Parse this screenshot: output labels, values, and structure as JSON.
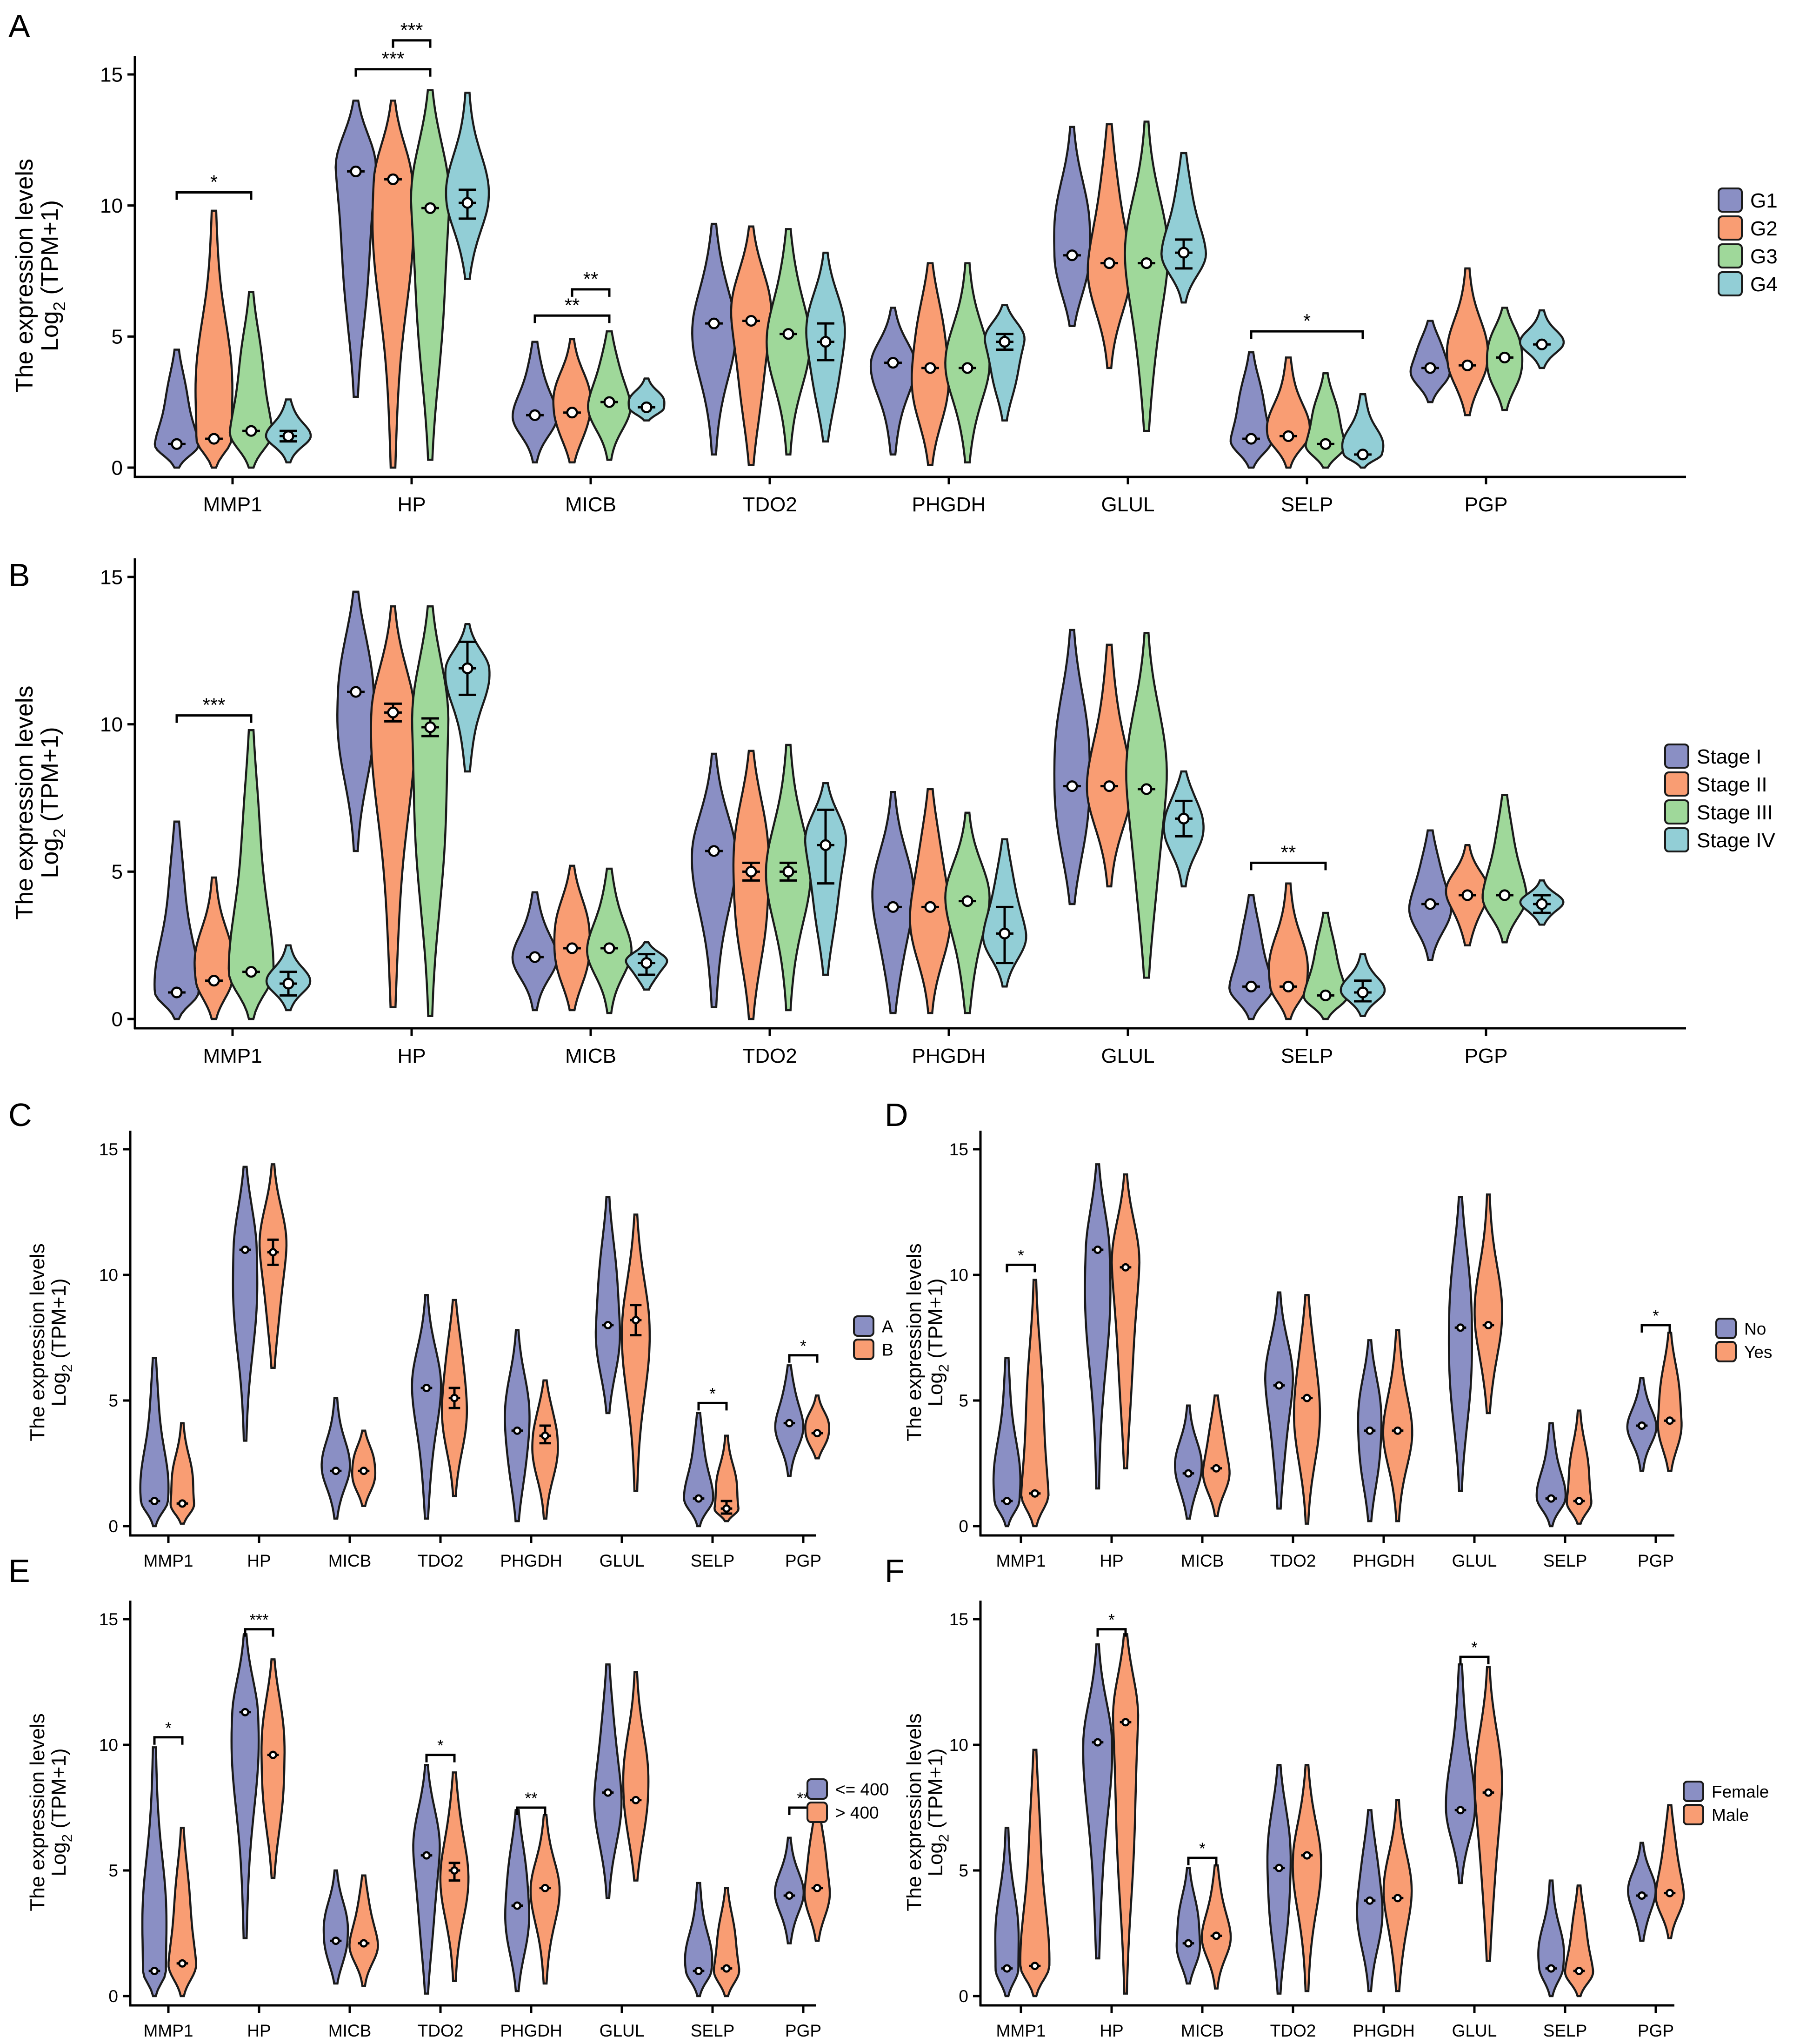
{
  "colors": {
    "blue": "#8a8fc4",
    "orange": "#f99d73",
    "green": "#9fd89a",
    "cyan": "#92ced6"
  },
  "chart_data": [
    {
      "panel": "A",
      "type": "violin",
      "ylabel_line1": "The expression levels",
      "ylabel_line2_pre": "Log",
      "ylabel_line2_sub": "2",
      "ylabel_line2_post": " (TPM+1)",
      "ylim": [
        0,
        15
      ],
      "yticks": [
        0,
        5,
        10,
        15
      ],
      "categories": [
        "MMP1",
        "HP",
        "MICB",
        "TDO2",
        "PHGDH",
        "GLUL",
        "SELP",
        "PGP"
      ],
      "legend": [
        "G1",
        "G2",
        "G3",
        "G4"
      ],
      "series": [
        {
          "name": "G1",
          "color": "blue",
          "min": [
            0,
            2.7,
            0.2,
            0.5,
            0.5,
            5.4,
            0,
            2.5
          ],
          "max": [
            4.5,
            14,
            4.8,
            9.3,
            6.1,
            13,
            4.4,
            5.6
          ],
          "median": [
            0.9,
            11.3,
            2.0,
            5.5,
            4.0,
            8.1,
            1.1,
            3.8
          ]
        },
        {
          "name": "G2",
          "color": "orange",
          "min": [
            0,
            0,
            0.2,
            0.1,
            0.1,
            3.8,
            0,
            2.0
          ],
          "max": [
            9.8,
            14,
            4.9,
            9.2,
            7.8,
            13.1,
            4.2,
            7.6
          ],
          "median": [
            1.1,
            11.0,
            2.1,
            5.6,
            3.8,
            7.8,
            1.2,
            3.9
          ]
        },
        {
          "name": "G3",
          "color": "green",
          "min": [
            0,
            0.3,
            0.3,
            0.5,
            0.2,
            1.4,
            0,
            2.2
          ],
          "max": [
            6.7,
            14.4,
            5.2,
            9.1,
            7.8,
            13.2,
            3.6,
            6.1
          ],
          "median": [
            1.4,
            9.9,
            2.5,
            5.1,
            3.8,
            7.8,
            0.9,
            4.2
          ]
        },
        {
          "name": "G4",
          "color": "cyan",
          "min": [
            0.2,
            7.2,
            1.8,
            1.0,
            1.8,
            6.3,
            0,
            3.8
          ],
          "max": [
            2.6,
            14.3,
            3.4,
            8.2,
            6.2,
            12.0,
            2.8,
            6.0
          ],
          "median": [
            1.2,
            10.1,
            2.3,
            4.8,
            4.8,
            8.2,
            0.5,
            4.7
          ]
        }
      ],
      "errors": [
        {
          "cat": 1,
          "series": 3,
          "lo": 9.5,
          "hi": 10.6
        },
        {
          "cat": 3,
          "series": 3,
          "lo": 4.1,
          "hi": 5.5
        },
        {
          "cat": 4,
          "series": 3,
          "lo": 4.5,
          "hi": 5.1
        },
        {
          "cat": 5,
          "series": 3,
          "lo": 7.6,
          "hi": 8.7
        },
        {
          "cat": 0,
          "series": 3,
          "lo": 1.0,
          "hi": 1.4
        }
      ],
      "brackets": [
        {
          "cat": 0,
          "from": 0,
          "to": 2,
          "y": 10.5,
          "label": "*"
        },
        {
          "cat": 1,
          "from": 0,
          "to": 2,
          "y": 15.2,
          "label": "***"
        },
        {
          "cat": 1,
          "from": 1,
          "to": 2,
          "y": 16.3,
          "label": "***"
        },
        {
          "cat": 2,
          "from": 0,
          "to": 2,
          "y": 5.8,
          "label": "**"
        },
        {
          "cat": 2,
          "from": 1,
          "to": 2,
          "y": 6.8,
          "label": "**"
        },
        {
          "cat": 6,
          "from": 0,
          "to": 3,
          "y": 5.2,
          "label": "*"
        }
      ]
    },
    {
      "panel": "B",
      "type": "violin",
      "ylabel_line1": "The expression levels",
      "ylabel_line2_pre": "Log",
      "ylabel_line2_sub": "2",
      "ylabel_line2_post": " (TPM+1)",
      "ylim": [
        0,
        15
      ],
      "yticks": [
        0,
        5,
        10,
        15
      ],
      "categories": [
        "MMP1",
        "HP",
        "MICB",
        "TDO2",
        "PHGDH",
        "GLUL",
        "SELP",
        "PGP"
      ],
      "legend": [
        "Stage I",
        "Stage II",
        "Stage III",
        "Stage IV"
      ],
      "series": [
        {
          "name": "Stage I",
          "color": "blue",
          "min": [
            0,
            5.7,
            0.3,
            0.4,
            0.2,
            3.9,
            0,
            2.0
          ],
          "max": [
            6.7,
            14.5,
            4.3,
            9.0,
            7.7,
            13.2,
            4.2,
            6.4
          ],
          "median": [
            0.9,
            11.1,
            2.1,
            5.7,
            3.8,
            7.9,
            1.1,
            3.9
          ]
        },
        {
          "name": "Stage II",
          "color": "orange",
          "min": [
            0,
            0.4,
            0.3,
            0,
            0.2,
            4.5,
            0,
            2.5
          ],
          "max": [
            4.8,
            14,
            5.2,
            9.1,
            7.8,
            12.7,
            4.6,
            5.9
          ],
          "median": [
            1.3,
            10.4,
            2.4,
            5.0,
            3.8,
            7.9,
            1.1,
            4.2
          ]
        },
        {
          "name": "Stage III",
          "color": "green",
          "min": [
            0,
            0.1,
            0.2,
            0.3,
            0.2,
            1.4,
            0,
            2.6
          ],
          "max": [
            9.8,
            14,
            5.1,
            9.3,
            7.0,
            13.1,
            3.6,
            7.6
          ],
          "median": [
            1.6,
            9.9,
            2.4,
            5.0,
            4.0,
            7.8,
            0.8,
            4.2
          ]
        },
        {
          "name": "Stage IV",
          "color": "cyan",
          "min": [
            0.3,
            8.4,
            1.0,
            1.5,
            1.1,
            4.5,
            0.1,
            3.2
          ],
          "max": [
            2.5,
            13.4,
            2.6,
            8.0,
            6.1,
            8.4,
            2.2,
            4.7
          ],
          "median": [
            1.2,
            11.9,
            1.9,
            5.9,
            2.9,
            6.8,
            0.9,
            3.9
          ]
        }
      ],
      "errors": [
        {
          "cat": 1,
          "series": 3,
          "lo": 11.0,
          "hi": 12.8
        },
        {
          "cat": 3,
          "series": 3,
          "lo": 4.6,
          "hi": 7.1
        },
        {
          "cat": 4,
          "series": 3,
          "lo": 1.9,
          "hi": 3.8
        },
        {
          "cat": 5,
          "series": 3,
          "lo": 6.2,
          "hi": 7.4
        },
        {
          "cat": 0,
          "series": 3,
          "lo": 0.8,
          "hi": 1.6
        },
        {
          "cat": 2,
          "series": 3,
          "lo": 1.5,
          "hi": 2.2
        },
        {
          "cat": 6,
          "series": 3,
          "lo": 0.6,
          "hi": 1.3
        },
        {
          "cat": 7,
          "series": 3,
          "lo": 3.6,
          "hi": 4.2
        },
        {
          "cat": 1,
          "series": 1,
          "lo": 10.1,
          "hi": 10.7
        },
        {
          "cat": 1,
          "series": 2,
          "lo": 9.6,
          "hi": 10.2
        },
        {
          "cat": 3,
          "series": 1,
          "lo": 4.7,
          "hi": 5.3
        },
        {
          "cat": 3,
          "series": 2,
          "lo": 4.7,
          "hi": 5.3
        }
      ],
      "brackets": [
        {
          "cat": 0,
          "from": 0,
          "to": 2,
          "y": 10.3,
          "label": "***"
        },
        {
          "cat": 6,
          "from": 0,
          "to": 2,
          "y": 5.3,
          "label": "**"
        }
      ]
    },
    {
      "panel": "C",
      "type": "violin",
      "ylabel_line1": "The expression levels",
      "ylabel_line2_pre": "Log",
      "ylabel_line2_sub": "2",
      "ylabel_line2_post": " (TPM+1)",
      "ylim": [
        0,
        15
      ],
      "yticks": [
        0,
        5,
        10,
        15
      ],
      "categories": [
        "MMP1",
        "HP",
        "MICB",
        "TDO2",
        "PHGDH",
        "GLUL",
        "SELP",
        "PGP"
      ],
      "legend": [
        "A",
        "B"
      ],
      "series": [
        {
          "name": "A",
          "color": "blue",
          "min": [
            0,
            3.4,
            0.3,
            0.3,
            0.2,
            4.5,
            0,
            2.0
          ],
          "max": [
            6.7,
            14.3,
            5.1,
            9.2,
            7.8,
            13.1,
            4.5,
            6.4
          ],
          "median": [
            1.0,
            11.0,
            2.2,
            5.5,
            3.8,
            8.0,
            1.1,
            4.1
          ]
        },
        {
          "name": "B",
          "color": "orange",
          "min": [
            0.1,
            6.3,
            0.8,
            1.2,
            0.3,
            1.4,
            0.2,
            2.7
          ],
          "max": [
            4.1,
            14.4,
            3.8,
            9.0,
            5.8,
            12.4,
            3.6,
            5.2
          ],
          "median": [
            0.9,
            10.9,
            2.2,
            5.1,
            3.6,
            8.2,
            0.7,
            3.7
          ]
        }
      ],
      "errors": [
        {
          "cat": 1,
          "series": 1,
          "lo": 10.4,
          "hi": 11.4
        },
        {
          "cat": 3,
          "series": 1,
          "lo": 4.7,
          "hi": 5.5
        },
        {
          "cat": 4,
          "series": 1,
          "lo": 3.3,
          "hi": 4.0
        },
        {
          "cat": 5,
          "series": 1,
          "lo": 7.6,
          "hi": 8.8
        },
        {
          "cat": 6,
          "series": 1,
          "lo": 0.5,
          "hi": 1.0
        }
      ],
      "brackets": [
        {
          "cat": 6,
          "from": 0,
          "to": 1,
          "y": 4.9,
          "label": "*"
        },
        {
          "cat": 7,
          "from": 0,
          "to": 1,
          "y": 6.8,
          "label": "*"
        }
      ]
    },
    {
      "panel": "D",
      "type": "violin",
      "ylabel_line1": "The expression levels",
      "ylabel_line2_pre": "Log",
      "ylabel_line2_sub": "2",
      "ylabel_line2_post": " (TPM+1)",
      "ylim": [
        0,
        15
      ],
      "yticks": [
        0,
        5,
        10,
        15
      ],
      "categories": [
        "MMP1",
        "HP",
        "MICB",
        "TDO2",
        "PHGDH",
        "GLUL",
        "SELP",
        "PGP"
      ],
      "legend": [
        "No",
        "Yes"
      ],
      "series": [
        {
          "name": "No",
          "color": "blue",
          "min": [
            0,
            1.5,
            0.3,
            0.7,
            0.2,
            1.4,
            0,
            2.2
          ],
          "max": [
            6.7,
            14.4,
            4.8,
            9.3,
            7.4,
            13.1,
            4.1,
            5.9
          ],
          "median": [
            1.0,
            11.0,
            2.1,
            5.6,
            3.8,
            7.9,
            1.1,
            4.0
          ]
        },
        {
          "name": "Yes",
          "color": "orange",
          "min": [
            0,
            2.3,
            0.4,
            0.1,
            0.2,
            4.5,
            0.1,
            2.2
          ],
          "max": [
            9.8,
            14.0,
            5.2,
            9.2,
            7.8,
            13.2,
            4.6,
            7.7
          ],
          "median": [
            1.3,
            10.3,
            2.3,
            5.1,
            3.8,
            8.0,
            1.0,
            4.2
          ]
        }
      ],
      "errors": [],
      "brackets": [
        {
          "cat": 0,
          "from": 0,
          "to": 1,
          "y": 10.4,
          "label": "*"
        },
        {
          "cat": 7,
          "from": 0,
          "to": 1,
          "y": 8.0,
          "label": "*"
        }
      ]
    },
    {
      "panel": "E",
      "type": "violin",
      "ylabel_line1": "The expression levels",
      "ylabel_line2_pre": "Log",
      "ylabel_line2_sub": "2",
      "ylabel_line2_post": " (TPM+1)",
      "ylim": [
        0,
        15
      ],
      "yticks": [
        0,
        5,
        10,
        15
      ],
      "categories": [
        "MMP1",
        "HP",
        "MICB",
        "TDO2",
        "PHGDH",
        "GLUL",
        "SELP",
        "PGP"
      ],
      "legend": [
        "<= 400",
        "> 400"
      ],
      "series": [
        {
          "name": "<= 400",
          "color": "blue",
          "min": [
            0,
            2.3,
            0.5,
            0.1,
            0.2,
            3.9,
            0,
            2.1
          ],
          "max": [
            9.9,
            14.4,
            5.0,
            9.2,
            7.4,
            13.2,
            4.5,
            6.3
          ],
          "median": [
            1.0,
            11.3,
            2.2,
            5.6,
            3.6,
            8.1,
            1.0,
            4.0
          ]
        },
        {
          "name": "> 400",
          "color": "orange",
          "min": [
            0,
            4.7,
            0.4,
            0.6,
            0.5,
            4.6,
            0,
            2.2
          ],
          "max": [
            6.7,
            13.4,
            4.8,
            8.9,
            7.2,
            12.9,
            4.3,
            7.7
          ],
          "median": [
            1.3,
            9.6,
            2.1,
            5.0,
            4.3,
            7.8,
            1.1,
            4.3
          ]
        }
      ],
      "errors": [
        {
          "cat": 3,
          "series": 1,
          "lo": 4.6,
          "hi": 5.3
        }
      ],
      "brackets": [
        {
          "cat": 0,
          "from": 0,
          "to": 1,
          "y": 10.3,
          "label": "*"
        },
        {
          "cat": 1,
          "from": 0,
          "to": 1,
          "y": 14.6,
          "label": "***"
        },
        {
          "cat": 3,
          "from": 0,
          "to": 1,
          "y": 9.6,
          "label": "*"
        },
        {
          "cat": 4,
          "from": 0,
          "to": 1,
          "y": 7.5,
          "label": "**"
        },
        {
          "cat": 7,
          "from": 0,
          "to": 1,
          "y": 7.5,
          "label": "**"
        }
      ]
    },
    {
      "panel": "F",
      "type": "violin",
      "ylabel_line1": "The expression levels",
      "ylabel_line2_pre": "Log",
      "ylabel_line2_sub": "2",
      "ylabel_line2_post": " (TPM+1)",
      "ylim": [
        0,
        15
      ],
      "yticks": [
        0,
        5,
        10,
        15
      ],
      "categories": [
        "MMP1",
        "HP",
        "MICB",
        "TDO2",
        "PHGDH",
        "GLUL",
        "SELP",
        "PGP"
      ],
      "legend": [
        "Female",
        "Male"
      ],
      "series": [
        {
          "name": "Female",
          "color": "blue",
          "min": [
            0,
            1.5,
            0.5,
            0.1,
            0.2,
            4.5,
            0,
            2.2
          ],
          "max": [
            6.7,
            14.0,
            5.1,
            9.2,
            7.4,
            13.2,
            4.6,
            6.1
          ],
          "median": [
            1.1,
            10.1,
            2.1,
            5.1,
            3.8,
            7.4,
            1.1,
            4.0
          ]
        },
        {
          "name": "Male",
          "color": "orange",
          "min": [
            0,
            0.1,
            0.3,
            0.2,
            0.2,
            1.4,
            0,
            2.3
          ],
          "max": [
            9.8,
            14.4,
            5.2,
            9.2,
            7.8,
            13.1,
            4.4,
            7.6
          ],
          "median": [
            1.2,
            10.9,
            2.4,
            5.6,
            3.9,
            8.1,
            1.0,
            4.1
          ]
        }
      ],
      "errors": [],
      "brackets": [
        {
          "cat": 1,
          "from": 0,
          "to": 1,
          "y": 14.6,
          "label": "*"
        },
        {
          "cat": 2,
          "from": 0,
          "to": 1,
          "y": 5.5,
          "label": "*"
        },
        {
          "cat": 5,
          "from": 0,
          "to": 1,
          "y": 13.5,
          "label": "*"
        }
      ]
    }
  ]
}
